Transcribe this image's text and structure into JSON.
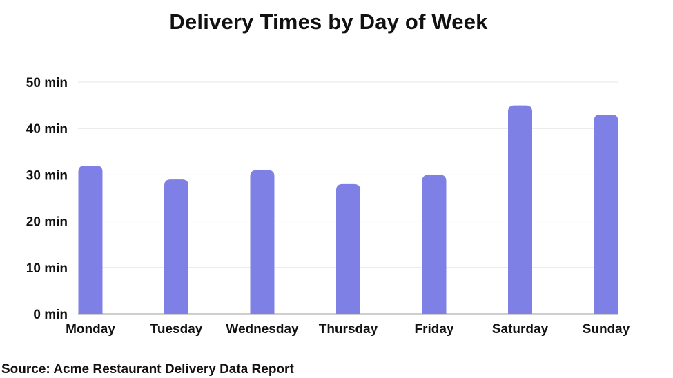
{
  "chart_data": {
    "type": "bar",
    "title": "Delivery Times by Day of Week",
    "categories": [
      "Monday",
      "Tuesday",
      "Wednesday",
      "Thursday",
      "Friday",
      "Saturday",
      "Sunday"
    ],
    "values": [
      32,
      29,
      31,
      28,
      30,
      45,
      43
    ],
    "ylim": [
      0,
      50
    ],
    "yticks": [
      {
        "value": 0,
        "label": "0 min"
      },
      {
        "value": 10,
        "label": "10 min"
      },
      {
        "value": 20,
        "label": "20 min"
      },
      {
        "value": 30,
        "label": "30 min"
      },
      {
        "value": 40,
        "label": "40 min"
      },
      {
        "value": 50,
        "label": "50 min"
      }
    ],
    "grid": true,
    "bar_color": "#7f80e6",
    "grid_color": "#e6e6e6",
    "axis_color": "#bdbdbd"
  },
  "source": "Source: Acme Restaurant Delivery Data Report"
}
